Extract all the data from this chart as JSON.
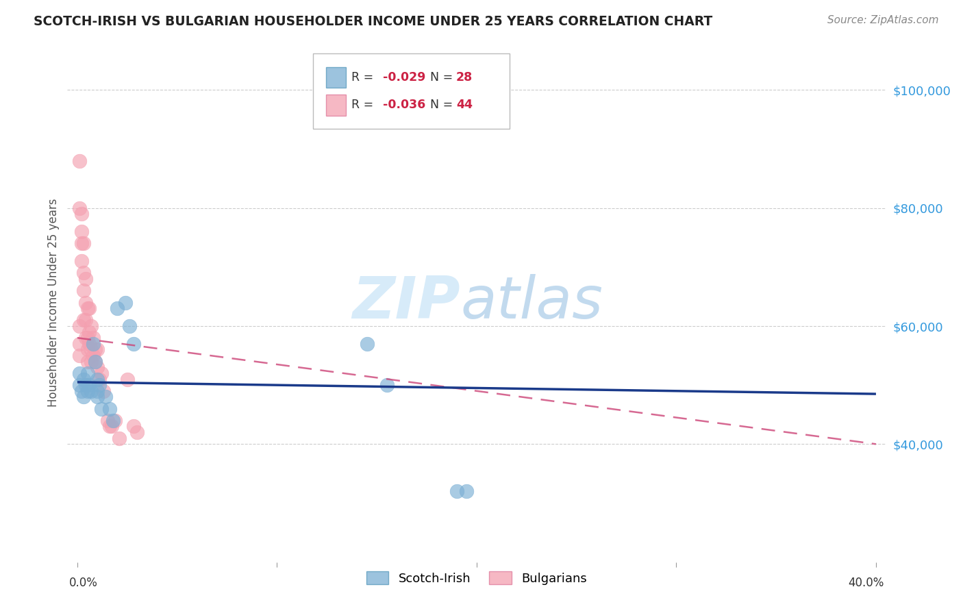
{
  "title": "SCOTCH-IRISH VS BULGARIAN HOUSEHOLDER INCOME UNDER 25 YEARS CORRELATION CHART",
  "source": "Source: ZipAtlas.com",
  "ylabel": "Householder Income Under 25 years",
  "legend_blue_r": "-0.029",
  "legend_blue_n": "28",
  "legend_pink_r": "-0.036",
  "legend_pink_n": "44",
  "watermark_zip": "ZIP",
  "watermark_atlas": "atlas",
  "xlim": [
    -0.005,
    0.405
  ],
  "ylim": [
    20000,
    108000
  ],
  "yticks": [
    40000,
    60000,
    80000,
    100000
  ],
  "ytick_labels": [
    "$40,000",
    "$60,000",
    "$80,000",
    "$100,000"
  ],
  "blue_color": "#7BAFD4",
  "pink_color": "#F4A0B0",
  "blue_line_color": "#1A3A8A",
  "pink_line_color": "#CC4477",
  "scotch_irish_x": [
    0.001,
    0.001,
    0.002,
    0.003,
    0.003,
    0.004,
    0.005,
    0.005,
    0.006,
    0.007,
    0.008,
    0.009,
    0.01,
    0.01,
    0.01,
    0.011,
    0.012,
    0.014,
    0.016,
    0.018,
    0.02,
    0.024,
    0.026,
    0.028,
    0.145,
    0.155,
    0.19,
    0.195
  ],
  "scotch_irish_y": [
    52000,
    50000,
    49000,
    51000,
    48000,
    50000,
    52000,
    49000,
    50000,
    49000,
    57000,
    54000,
    51000,
    49000,
    48000,
    50000,
    46000,
    48000,
    46000,
    44000,
    63000,
    64000,
    60000,
    57000,
    57000,
    50000,
    32000,
    32000
  ],
  "bulgarian_x": [
    0.001,
    0.001,
    0.001,
    0.002,
    0.002,
    0.002,
    0.003,
    0.003,
    0.003,
    0.004,
    0.004,
    0.004,
    0.005,
    0.005,
    0.005,
    0.006,
    0.006,
    0.007,
    0.007,
    0.008,
    0.008,
    0.009,
    0.009,
    0.01,
    0.01,
    0.011,
    0.012,
    0.013,
    0.015,
    0.016,
    0.017,
    0.019,
    0.021,
    0.025,
    0.028,
    0.03,
    0.001,
    0.001,
    0.002,
    0.003,
    0.004,
    0.005,
    0.006,
    0.007
  ],
  "bulgarian_y": [
    60000,
    57000,
    55000,
    76000,
    74000,
    71000,
    69000,
    66000,
    61000,
    64000,
    61000,
    58000,
    58000,
    56000,
    54000,
    59000,
    57000,
    56000,
    54000,
    58000,
    55000,
    56000,
    54000,
    56000,
    53000,
    51000,
    52000,
    49000,
    44000,
    43000,
    43000,
    44000,
    41000,
    51000,
    43000,
    42000,
    88000,
    80000,
    79000,
    74000,
    68000,
    63000,
    63000,
    60000
  ]
}
